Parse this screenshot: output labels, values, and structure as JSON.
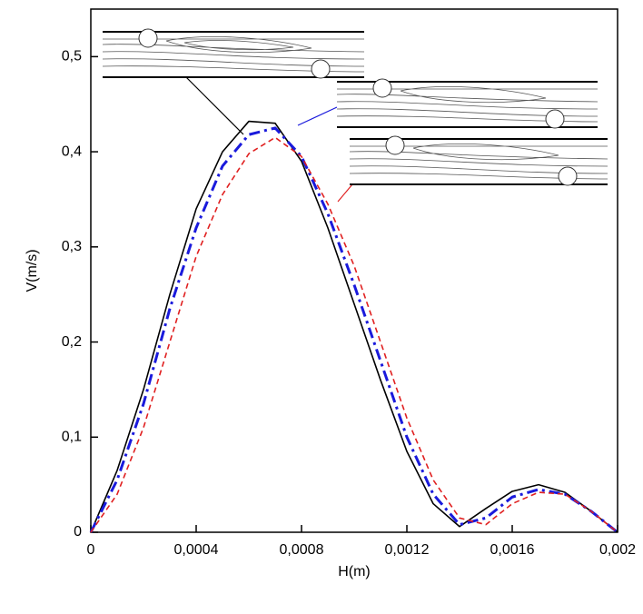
{
  "chart_data": {
    "type": "line",
    "x_label": "H(m)",
    "y_label": "V(m/s)",
    "x": [
      0,
      0.0001,
      0.0002,
      0.0003,
      0.0004,
      0.0005,
      0.0006,
      0.0007,
      0.0008,
      0.0009,
      0.001,
      0.0011,
      0.0012,
      0.0013,
      0.0014,
      0.0015,
      0.0016,
      0.0017,
      0.0018,
      0.0019,
      0.002
    ],
    "series": [
      {
        "color": "#000000",
        "dash": "solid",
        "values": [
          0,
          0.065,
          0.15,
          0.25,
          0.34,
          0.4,
          0.432,
          0.43,
          0.39,
          0.32,
          0.24,
          0.16,
          0.085,
          0.03,
          0.006,
          0.025,
          0.043,
          0.05,
          0.042,
          0.022,
          0
        ]
      },
      {
        "color": "#1a1adc",
        "dash": "dashdot",
        "values": [
          0,
          0.055,
          0.135,
          0.235,
          0.32,
          0.385,
          0.418,
          0.425,
          0.395,
          0.335,
          0.26,
          0.18,
          0.1,
          0.04,
          0.008,
          0.015,
          0.037,
          0.045,
          0.04,
          0.022,
          0
        ]
      },
      {
        "color": "#e02020",
        "dash": "dashed",
        "values": [
          0,
          0.04,
          0.11,
          0.2,
          0.29,
          0.355,
          0.398,
          0.415,
          0.395,
          0.345,
          0.28,
          0.2,
          0.12,
          0.055,
          0.015,
          0.008,
          0.03,
          0.042,
          0.04,
          0.022,
          0
        ]
      }
    ],
    "xlim": [
      0,
      0.002
    ],
    "ylim": [
      0,
      0.55
    ],
    "xticks": [
      0,
      {
        "value": 0.0004,
        "label": "0,0004"
      },
      {
        "value": 0.0008,
        "label": "0,0008"
      },
      {
        "value": 0.0012,
        "label": "0,0012"
      },
      {
        "value": 0.0016,
        "label": "0,0016"
      },
      {
        "value": 0.002,
        "label": "0,002"
      }
    ],
    "yticks": [
      0,
      {
        "value": 0.1,
        "label": "0,1"
      },
      {
        "value": 0.2,
        "label": "0,2"
      },
      {
        "value": 0.3,
        "label": "0,3"
      },
      {
        "value": 0.4,
        "label": "0,4"
      },
      {
        "value": 0.5,
        "label": "0,5"
      }
    ],
    "grid": false
  }
}
